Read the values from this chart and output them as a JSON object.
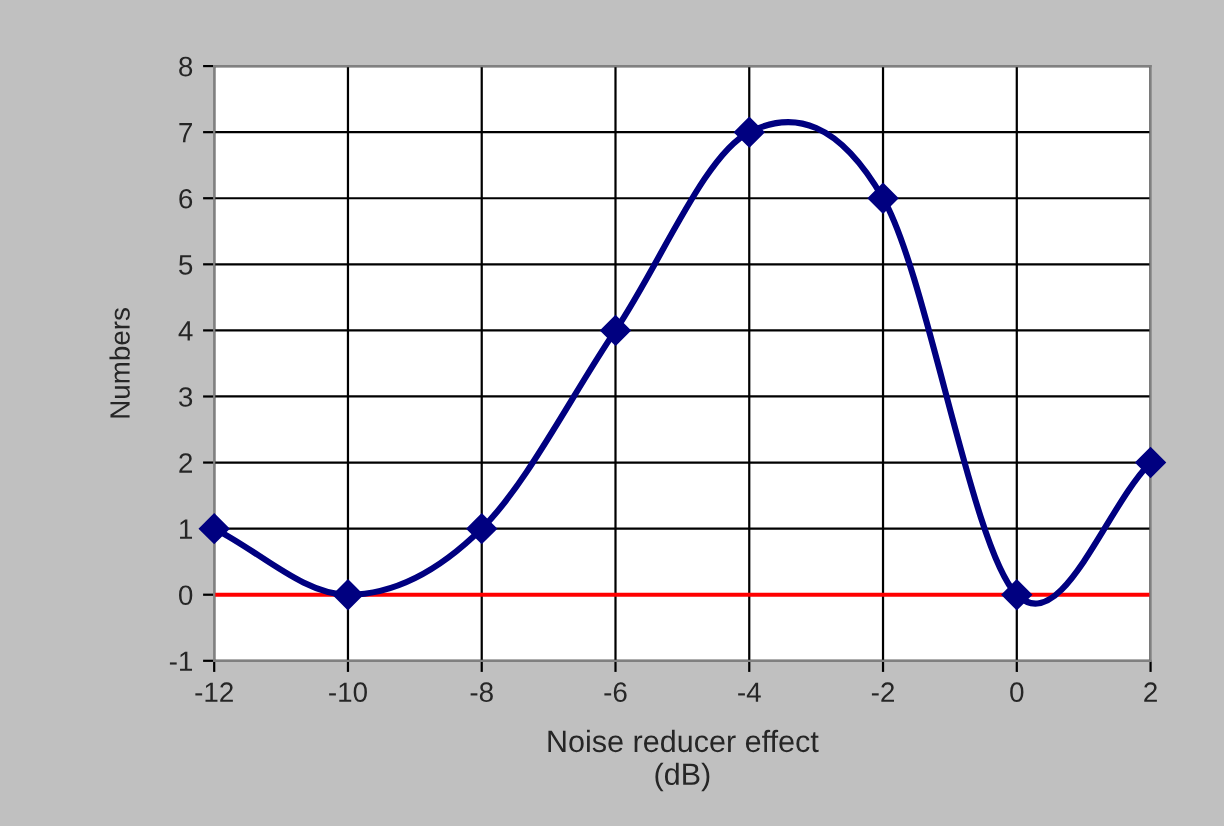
{
  "chart_data": {
    "type": "line",
    "xlabel": "Noise reducer effect\n(dB)",
    "ylabel": "Numbers",
    "x": [
      -12,
      -10,
      -8,
      -6,
      -4,
      -2,
      0,
      2
    ],
    "series": [
      {
        "color": "#000080",
        "values": [
          1,
          0,
          1,
          4,
          7,
          6,
          0,
          2
        ]
      }
    ],
    "xlim": [
      -12,
      2
    ],
    "xticks": [
      -12,
      -10,
      -8,
      -6,
      -4,
      -2,
      0,
      2
    ],
    "ylim": [
      -1,
      8
    ],
    "yticks": [
      -1,
      0,
      1,
      2,
      3,
      4,
      5,
      6,
      7,
      8
    ],
    "grid": true,
    "marker": "diamond",
    "line_style": "solid",
    "ref_lines": [
      {
        "axis": "y",
        "value": 0,
        "color": "#ff0000"
      }
    ]
  }
}
